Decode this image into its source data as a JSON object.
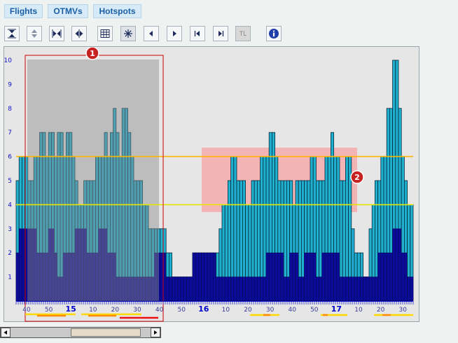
{
  "tabs": [
    {
      "label": "Flights"
    },
    {
      "label": "OTMVs"
    },
    {
      "label": "Hotspots"
    }
  ],
  "toolbar": {
    "tl_label": "TL",
    "buttons": [
      "collapse-vertical-icon",
      "expand-vertical-icon",
      "collapse-horizontal-icon",
      "expand-horizontal-icon",
      "table-icon",
      "snowflake-icon",
      "triangle-left-icon",
      "triangle-right-icon",
      "skip-start-icon",
      "skip-end-icon",
      "tl-toggle",
      "info-icon"
    ]
  },
  "callouts": [
    {
      "label": "1"
    },
    {
      "label": "2"
    }
  ],
  "colors": {
    "bar_light": "#1fb0cf",
    "bar_dark": "#0b0b9a",
    "threshold_high": "#ffb400",
    "threshold_low": "#e5e500",
    "selection_box": "#cc0000",
    "hotspot": "#f5a3a3",
    "callout": "#c72222"
  },
  "chart_data": {
    "type": "bar",
    "ylim": [
      0,
      10
    ],
    "y_ticks": [
      "1",
      "2",
      "3",
      "4",
      "5",
      "6",
      "7",
      "8",
      "9",
      "10"
    ],
    "x_tick_labels": [
      "40",
      "50",
      "15",
      "10",
      "20",
      "30",
      "40",
      "50",
      "16",
      "10",
      "20",
      "30",
      "40",
      "50",
      "17",
      "10",
      "20",
      "30"
    ],
    "bold_labels": [
      "15",
      "16",
      "17"
    ],
    "thresholds": [
      {
        "name": "upper",
        "value": 6
      },
      {
        "name": "lower",
        "value": 4
      }
    ],
    "series": [
      {
        "values": [
          5,
          6,
          6,
          6,
          5,
          5,
          6,
          6,
          7,
          7,
          6,
          7,
          7,
          6,
          7,
          7,
          6,
          7,
          7,
          6,
          5,
          4,
          4,
          5,
          5,
          5,
          5,
          6,
          6,
          6,
          7,
          6,
          7,
          8,
          7,
          6,
          8,
          8,
          7,
          6,
          5,
          5,
          5,
          4,
          4,
          3,
          3,
          3,
          3,
          3,
          3,
          2,
          2,
          1,
          1,
          1,
          1,
          1,
          1,
          1,
          2,
          2,
          2,
          2,
          2,
          2,
          2,
          2,
          2,
          3,
          4,
          4,
          5,
          6,
          6,
          5,
          5,
          5,
          4,
          4,
          5,
          5,
          5,
          6,
          6,
          6,
          7,
          7,
          6,
          5,
          5,
          5,
          5,
          5,
          4,
          5,
          5,
          5,
          5,
          5,
          6,
          6,
          5,
          5,
          5,
          6,
          6,
          7,
          6,
          6,
          5,
          5,
          6,
          6,
          3,
          2,
          2,
          2,
          1,
          1,
          3,
          4,
          5,
          5,
          6,
          6,
          8,
          8,
          10,
          10,
          8,
          6,
          5,
          4,
          4
        ]
      },
      {
        "values": [
          2,
          3,
          3,
          3,
          3,
          3,
          3,
          2,
          2,
          2,
          2,
          3,
          3,
          2,
          1,
          1,
          2,
          2,
          2,
          2,
          3,
          3,
          3,
          3,
          2,
          2,
          2,
          2,
          3,
          3,
          3,
          2,
          2,
          2,
          1,
          1,
          1,
          1,
          1,
          1,
          1,
          1,
          1,
          1,
          1,
          1,
          1,
          2,
          2,
          2,
          2,
          1,
          1,
          1,
          1,
          1,
          1,
          1,
          1,
          1,
          2,
          2,
          2,
          2,
          2,
          2,
          2,
          2,
          1,
          1,
          1,
          1,
          1,
          1,
          1,
          1,
          1,
          1,
          1,
          1,
          1,
          1,
          1,
          1,
          1,
          2,
          2,
          2,
          2,
          2,
          2,
          1,
          1,
          2,
          2,
          2,
          1,
          1,
          2,
          2,
          2,
          2,
          1,
          1,
          2,
          2,
          2,
          2,
          2,
          2,
          1,
          1,
          1,
          1,
          1,
          1,
          1,
          1,
          1,
          1,
          1,
          1,
          1,
          2,
          2,
          2,
          2,
          2,
          3,
          3,
          3,
          2,
          2,
          1,
          1
        ]
      }
    ]
  }
}
